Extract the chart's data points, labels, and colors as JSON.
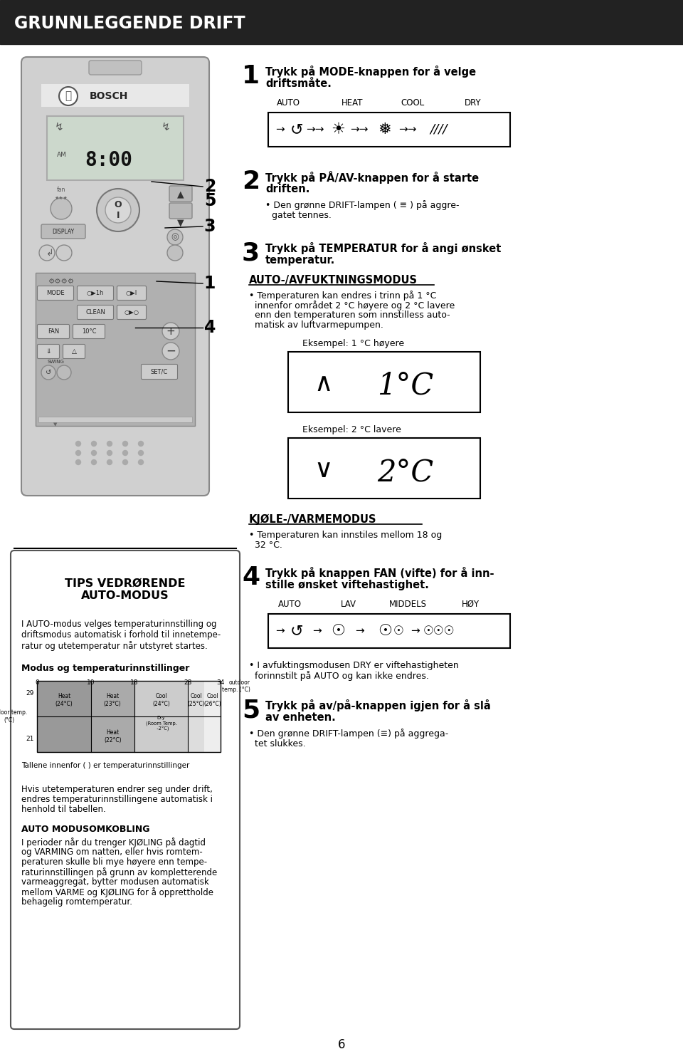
{
  "title": "GRUNNLEGGENDE DRIFT",
  "page_bg": "#ffffff",
  "title_bg": "#222222",
  "title_color": "#ffffff",
  "step1_line1": "Trykk på MODE-knappen for å velge",
  "step1_line2": "driftsmåte.",
  "mode_labels": [
    "AUTO",
    "HEAT",
    "COOL",
    "DRY"
  ],
  "step2_line1": "Trykk på PÅ/AV-knappen for å starte",
  "step2_line2": "driften.",
  "step2_bullet": "Den grønne DRIFT-lampen ( ≡ ) på aggre-\ngatet tennes.",
  "step3_line1": "Trykk på TEMPERATUR for å angi ønsket",
  "step3_line2": "temperatur.",
  "auto_section": "AUTO-/AVFUKTNINGSMODUS",
  "auto_bullet": "Temperaturen kan endres i trinn på 1 °C\ninnenfor området 2 °C høyere og 2 °C lavere\nenn den temperaturen som innstilless auto-\nmatisk av luftvarmepumpen.",
  "ex1_label": "Eksempel: 1 °C høyere",
  "ex2_label": "Eksempel: 2 °C lavere",
  "kjole_section": "KJØLE-/VARMEMODUS",
  "kjole_bullet": "Temperaturen kan innstiles mellom 18 og\n32 °C.",
  "step4_line1": "Trykk på knappen FAN (vifte) for å inn-",
  "step4_line2": "stille ønsket viftehastighet.",
  "fan_labels": [
    "AUTO",
    "LAV",
    "MIDDELS",
    "HØY"
  ],
  "step4_bullet": "I avfuktingsmodusen DRY er viftehastigheten\nforinnstilt på AUTO og kan ikke endres.",
  "step5_line1": "Trykk på av/på-knappen igjen for å slå",
  "step5_line2": "av enheten.",
  "step5_bullet": "Den grønne DRIFT-lampen (≡) på aggrega-\ntet slukkes.",
  "tips_title": "TIPS VEDRØRENDE\nAUTO-MODUS",
  "tips_p1": "I AUTO-modus velges temperaturinnstilling og\ndriftsmodus automatisk i forhold til innetempe-\nratur og utetemperatur når utstyret startes.",
  "tips_bold2": "Modus og temperaturinnstillinger",
  "tips_note": "Tallene innenfor ( ) er temperaturinnstillinger",
  "tips_p2": "Hvis utetemperaturen endrer seg under drift,\nendres temperaturinnstillingene automatisk i\nhenhold til tabellen.",
  "tips_bold3": "AUTO MODUSOMKOBLING",
  "tips_p3": "I perioder når du trenger KJØLING på dagtid\nog VARMING om natten, eller hvis romtem-\nperaturen skulle bli mye høyere enn tempe-\nraturinnstillingen på grunn av kompletterende\nvarmeaggregat, bytter modusen automatisk\nmellom VARME og KJØLING for å opprettholde\nbehagelig romtemperatur.",
  "page_num": "6"
}
